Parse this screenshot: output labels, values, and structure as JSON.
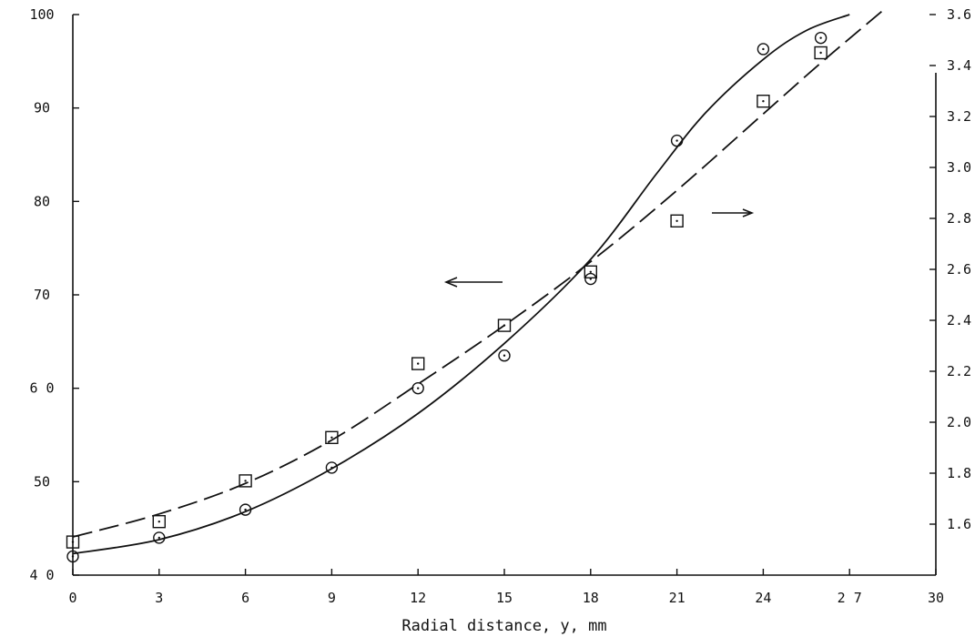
{
  "chart_data": {
    "type": "scatter",
    "title": "",
    "xlabel": "Radial distance, y, mm",
    "ylabel": "",
    "y2label": "",
    "xlim": [
      0,
      30
    ],
    "ylim": [
      40,
      100
    ],
    "y2lim": [
      1.4,
      3.6
    ],
    "x_ticks": [
      0,
      3,
      6,
      9,
      12,
      15,
      18,
      21,
      24,
      27,
      30
    ],
    "x_tick_labels": [
      "0",
      "3",
      "6",
      "9",
      "12",
      "15",
      "18",
      "21",
      "24",
      "2 7",
      "30"
    ],
    "y_ticks": [
      40,
      50,
      60,
      70,
      80,
      90,
      100
    ],
    "y_tick_labels": [
      "4 0",
      "50",
      "6 0",
      "70",
      "80",
      "90",
      "100"
    ],
    "y2_ticks": [
      1.6,
      1.8,
      2.0,
      2.2,
      2.4,
      2.6,
      2.8,
      3.0,
      3.2,
      3.4,
      3.6
    ],
    "y2_tick_labels": [
      "1.6",
      "1.8",
      "2.0",
      "2.2",
      "2.4",
      "2.6",
      "2.8",
      "3.0",
      "3.2",
      "3.4",
      "3.6"
    ],
    "grid": false,
    "series": [
      {
        "marker": "circle",
        "axis": "left",
        "line": "solid",
        "points": [
          {
            "x": 0,
            "y": 42
          },
          {
            "x": 3,
            "y": 44
          },
          {
            "x": 6,
            "y": 47
          },
          {
            "x": 9,
            "y": 51.5
          },
          {
            "x": 12,
            "y": 60
          },
          {
            "x": 15,
            "y": 63.5
          },
          {
            "x": 18,
            "y": 71.7
          },
          {
            "x": 21,
            "y": 86.5
          },
          {
            "x": 24,
            "y": 96.3
          },
          {
            "x": 26,
            "y": 97.5
          }
        ],
        "curve": [
          {
            "x": 0,
            "y": 42.3
          },
          {
            "x": 3,
            "y": 43.8
          },
          {
            "x": 6,
            "y": 46.8
          },
          {
            "x": 9,
            "y": 51.4
          },
          {
            "x": 12,
            "y": 57.3
          },
          {
            "x": 15,
            "y": 64.8
          },
          {
            "x": 18,
            "y": 73.8
          },
          {
            "x": 20.3,
            "y": 83
          },
          {
            "x": 22,
            "y": 89.5
          },
          {
            "x": 24,
            "y": 95.2
          },
          {
            "x": 25.5,
            "y": 98.3
          },
          {
            "x": 27,
            "y": 100
          }
        ]
      },
      {
        "marker": "square",
        "axis": "right",
        "line": "dashed",
        "points": [
          {
            "x": 0,
            "y": 1.53
          },
          {
            "x": 3,
            "y": 1.61
          },
          {
            "x": 6,
            "y": 1.77
          },
          {
            "x": 9,
            "y": 1.94
          },
          {
            "x": 12,
            "y": 2.23
          },
          {
            "x": 15,
            "y": 2.38
          },
          {
            "x": 18,
            "y": 2.59
          },
          {
            "x": 21,
            "y": 2.79
          },
          {
            "x": 24,
            "y": 3.26
          },
          {
            "x": 26,
            "y": 3.45
          }
        ],
        "curve": [
          {
            "x": 0,
            "y": 1.55
          },
          {
            "x": 3,
            "y": 1.64
          },
          {
            "x": 6,
            "y": 1.76
          },
          {
            "x": 9,
            "y": 1.93
          },
          {
            "x": 12,
            "y": 2.15
          },
          {
            "x": 15,
            "y": 2.38
          },
          {
            "x": 18,
            "y": 2.63
          },
          {
            "x": 21,
            "y": 2.91
          },
          {
            "x": 24,
            "y": 3.21
          },
          {
            "x": 26,
            "y": 3.41
          },
          {
            "x": 28.2,
            "y": 3.62
          }
        ]
      }
    ]
  }
}
